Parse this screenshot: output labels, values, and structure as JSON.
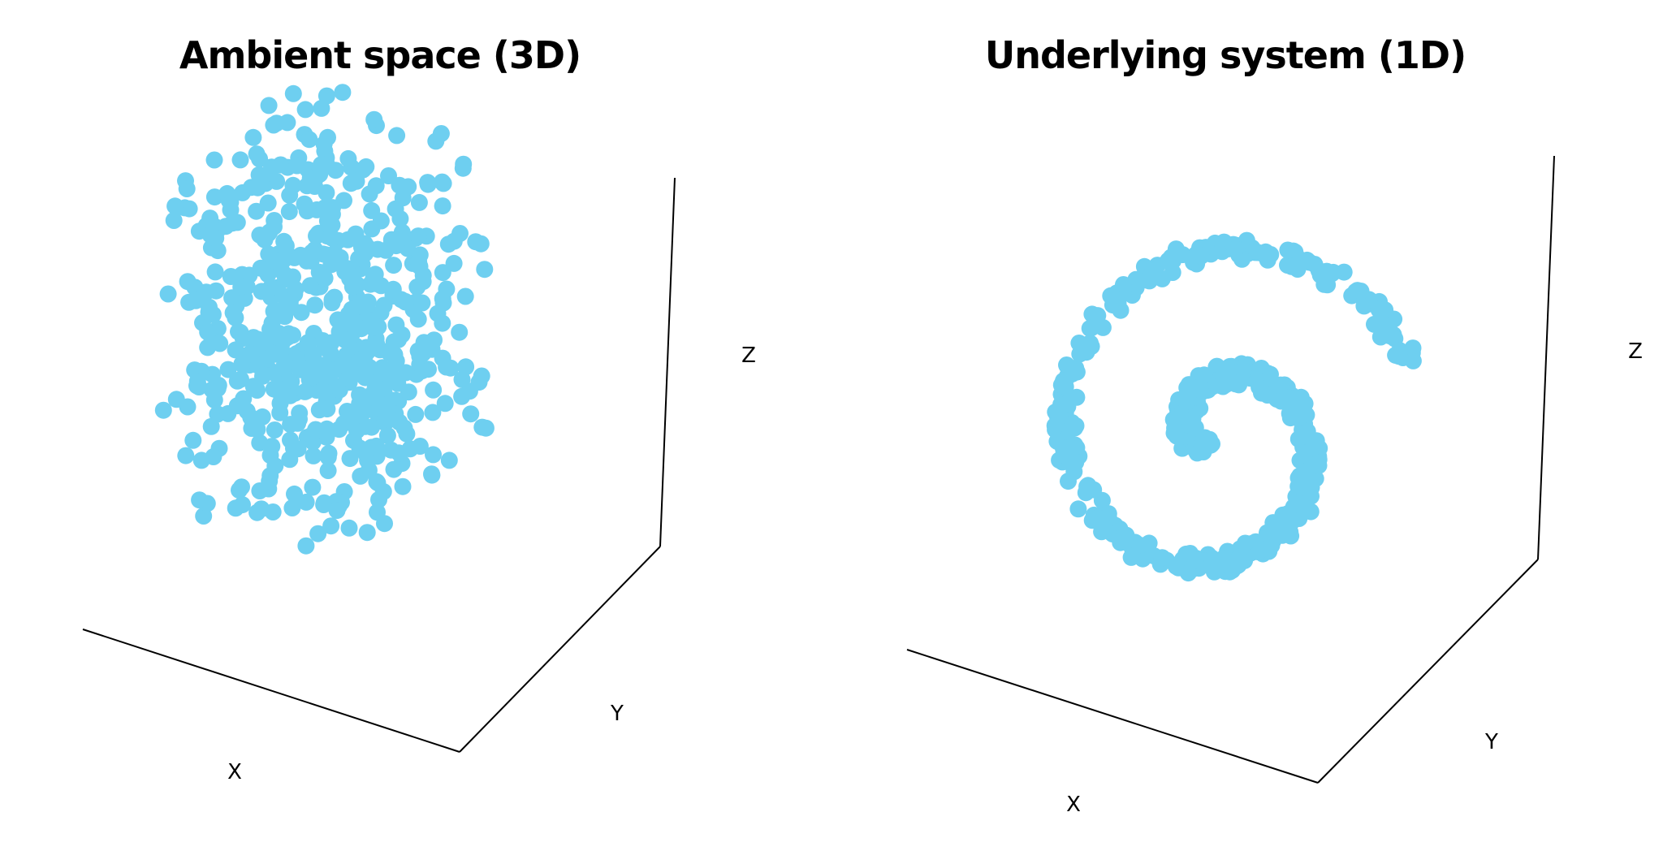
{
  "chart_data": [
    {
      "type": "scatter",
      "dimensions": 3,
      "title": "Ambient space (3D)",
      "xlabel": "X",
      "ylabel": "Y",
      "zlabel": "Z",
      "marker_color": "#6ECFF0",
      "axis_color": "#000000",
      "grid": false,
      "distribution": "points uniformly scattered throughout a 3D cube",
      "point_count": 600
    },
    {
      "type": "scatter",
      "dimensions": 3,
      "title": "Underlying system (1D)",
      "xlabel": "X",
      "ylabel": "Y",
      "zlabel": "Z",
      "marker_color": "#6ECFF0",
      "axis_color": "#000000",
      "grid": false,
      "distribution": "points concentrated along a 1D spiral curve",
      "point_count": 520
    }
  ]
}
